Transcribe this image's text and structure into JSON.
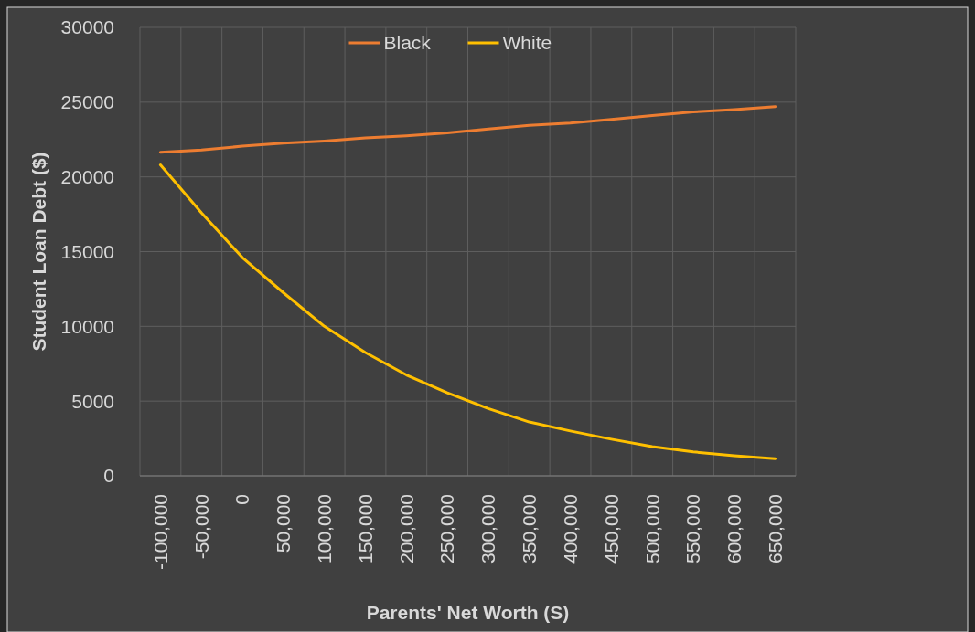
{
  "chart_data": {
    "type": "line",
    "xlabel": "Parents' Net Worth (S)",
    "ylabel": "Student Loan Debt ($)",
    "categories": [
      "-100,000",
      "-50,000",
      "0",
      "50,000",
      "100,000",
      "150,000",
      "200,000",
      "250,000",
      "300,000",
      "350,000",
      "400,000",
      "450,000",
      "500,000",
      "550,000",
      "600,000",
      "650,000"
    ],
    "series": [
      {
        "name": "Black",
        "color": "#ed7d31",
        "values": [
          21650,
          21800,
          22050,
          22250,
          22400,
          22600,
          22750,
          22950,
          23200,
          23450,
          23600,
          23850,
          24100,
          24350,
          24500,
          24700
        ]
      },
      {
        "name": "White",
        "color": "#ffc000",
        "values": [
          20800,
          17600,
          14600,
          12250,
          10000,
          8250,
          6750,
          5550,
          4500,
          3600,
          3000,
          2450,
          1950,
          1600,
          1350,
          1150
        ]
      }
    ],
    "ylim": [
      0,
      30000
    ],
    "yticks": [
      0,
      5000,
      10000,
      15000,
      20000,
      25000,
      30000
    ],
    "grid": true,
    "legend": "top",
    "marker": "none",
    "line_style": "solid"
  }
}
